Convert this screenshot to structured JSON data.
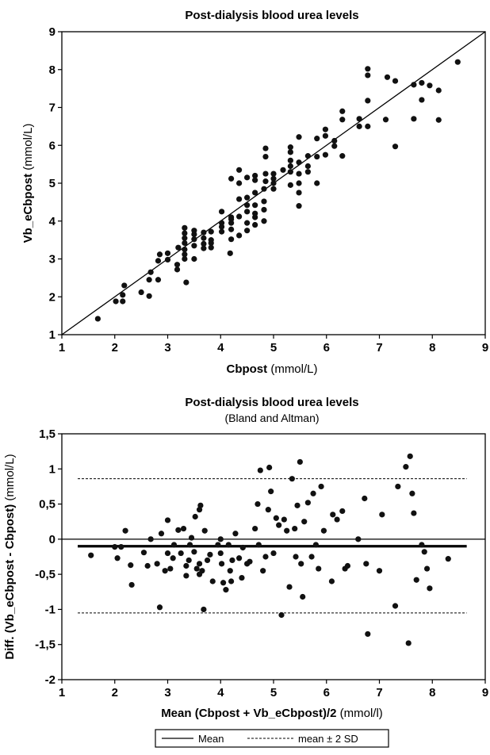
{
  "chart_data": [
    {
      "type": "scatter",
      "title": "Post-dialysis blood urea levels",
      "xlabel_bold": "Cbpost",
      "xlabel_rest": " (mmol/L)",
      "ylabel_bold": "Vb_eCbpost",
      "ylabel_rest": " (mmol/L)",
      "xlim": [
        1,
        9
      ],
      "ylim": [
        1,
        9
      ],
      "xticks": [
        1,
        2,
        3,
        4,
        5,
        6,
        7,
        8,
        9
      ],
      "yticks": [
        1,
        2,
        3,
        4,
        5,
        6,
        7,
        8,
        9
      ],
      "xtick_labels": [
        "1",
        "2",
        "3",
        "4",
        "5",
        "6",
        "7",
        "8",
        "9"
      ],
      "ytick_labels": [
        "1",
        "2",
        "3",
        "4",
        "5",
        "6",
        "7",
        "8",
        "9"
      ],
      "identity_line": true,
      "points": [
        [
          1.68,
          1.42
        ],
        [
          2.02,
          1.88
        ],
        [
          2.15,
          1.88
        ],
        [
          2.15,
          2.05
        ],
        [
          2.18,
          2.3
        ],
        [
          2.5,
          2.12
        ],
        [
          2.65,
          2.02
        ],
        [
          2.65,
          2.45
        ],
        [
          2.68,
          2.65
        ],
        [
          2.82,
          2.45
        ],
        [
          2.82,
          2.95
        ],
        [
          2.85,
          3.12
        ],
        [
          3.0,
          2.98
        ],
        [
          3.0,
          3.15
        ],
        [
          3.18,
          2.72
        ],
        [
          3.18,
          2.85
        ],
        [
          3.2,
          3.3
        ],
        [
          3.32,
          3.0
        ],
        [
          3.32,
          3.12
        ],
        [
          3.32,
          3.25
        ],
        [
          3.32,
          3.42
        ],
        [
          3.32,
          3.55
        ],
        [
          3.32,
          3.68
        ],
        [
          3.32,
          3.82
        ],
        [
          3.35,
          2.38
        ],
        [
          3.5,
          3.0
        ],
        [
          3.5,
          3.35
        ],
        [
          3.5,
          3.52
        ],
        [
          3.5,
          3.65
        ],
        [
          3.5,
          3.75
        ],
        [
          3.68,
          3.28
        ],
        [
          3.68,
          3.4
        ],
        [
          3.68,
          3.55
        ],
        [
          3.68,
          3.7
        ],
        [
          3.82,
          3.3
        ],
        [
          3.82,
          3.42
        ],
        [
          3.82,
          3.5
        ],
        [
          3.82,
          3.72
        ],
        [
          4.02,
          3.72
        ],
        [
          4.02,
          3.85
        ],
        [
          4.02,
          3.95
        ],
        [
          4.02,
          4.25
        ],
        [
          4.18,
          3.15
        ],
        [
          4.2,
          3.52
        ],
        [
          4.2,
          3.78
        ],
        [
          4.2,
          3.95
        ],
        [
          4.2,
          4.05
        ],
        [
          4.2,
          4.1
        ],
        [
          4.2,
          5.12
        ],
        [
          4.35,
          3.62
        ],
        [
          4.35,
          4.12
        ],
        [
          4.35,
          4.58
        ],
        [
          4.35,
          5.0
        ],
        [
          4.35,
          5.35
        ],
        [
          4.5,
          3.75
        ],
        [
          4.5,
          3.95
        ],
        [
          4.5,
          4.25
        ],
        [
          4.5,
          4.42
        ],
        [
          4.5,
          4.62
        ],
        [
          4.5,
          5.15
        ],
        [
          4.65,
          3.9
        ],
        [
          4.65,
          4.1
        ],
        [
          4.65,
          4.2
        ],
        [
          4.65,
          4.42
        ],
        [
          4.65,
          4.75
        ],
        [
          4.65,
          5.08
        ],
        [
          4.65,
          5.2
        ],
        [
          4.82,
          4.0
        ],
        [
          4.82,
          4.3
        ],
        [
          4.82,
          4.52
        ],
        [
          4.82,
          4.85
        ],
        [
          4.85,
          5.05
        ],
        [
          4.85,
          5.25
        ],
        [
          4.85,
          5.7
        ],
        [
          4.85,
          5.92
        ],
        [
          5.0,
          4.85
        ],
        [
          5.0,
          5.0
        ],
        [
          5.0,
          5.12
        ],
        [
          5.0,
          5.25
        ],
        [
          5.18,
          5.35
        ],
        [
          5.32,
          4.95
        ],
        [
          5.32,
          5.3
        ],
        [
          5.32,
          5.45
        ],
        [
          5.32,
          5.6
        ],
        [
          5.32,
          5.82
        ],
        [
          5.32,
          5.95
        ],
        [
          5.48,
          4.4
        ],
        [
          5.48,
          4.75
        ],
        [
          5.48,
          5.0
        ],
        [
          5.48,
          5.25
        ],
        [
          5.48,
          5.55
        ],
        [
          5.48,
          6.22
        ],
        [
          5.65,
          5.3
        ],
        [
          5.65,
          5.45
        ],
        [
          5.65,
          5.72
        ],
        [
          5.82,
          5.0
        ],
        [
          5.82,
          5.7
        ],
        [
          5.82,
          6.18
        ],
        [
          5.98,
          5.75
        ],
        [
          5.98,
          6.25
        ],
        [
          5.98,
          6.42
        ],
        [
          6.15,
          5.98
        ],
        [
          6.15,
          6.12
        ],
        [
          6.3,
          5.72
        ],
        [
          6.3,
          6.68
        ],
        [
          6.3,
          6.9
        ],
        [
          6.62,
          6.5
        ],
        [
          6.62,
          6.7
        ],
        [
          6.78,
          6.5
        ],
        [
          6.78,
          7.18
        ],
        [
          6.78,
          7.85
        ],
        [
          6.78,
          8.02
        ],
        [
          7.12,
          6.68
        ],
        [
          7.15,
          7.8
        ],
        [
          7.3,
          5.97
        ],
        [
          7.3,
          7.7
        ],
        [
          7.65,
          6.7
        ],
        [
          7.65,
          7.6
        ],
        [
          7.8,
          7.2
        ],
        [
          7.8,
          7.65
        ],
        [
          7.95,
          7.58
        ],
        [
          8.12,
          6.67
        ],
        [
          8.12,
          7.45
        ],
        [
          8.48,
          8.2
        ]
      ]
    },
    {
      "type": "scatter",
      "title": "Post-dialysis blood urea levels",
      "subtitle": "(Bland and Altman)",
      "xlabel_bold": "Mean (Cbpost + Vb_eCbpost)/2",
      "xlabel_rest": " (mmol/l)",
      "ylabel_bold": "Diff. (Vb_eCbpost - Cbpost)",
      "ylabel_rest": " (mmol/L)",
      "xlim": [
        1,
        9
      ],
      "ylim": [
        -2,
        1.5
      ],
      "xticks": [
        1,
        2,
        3,
        4,
        5,
        6,
        7,
        8,
        9
      ],
      "yticks": [
        -2,
        -1.5,
        -1,
        -0.5,
        0,
        0.5,
        1,
        1.5
      ],
      "xtick_labels": [
        "1",
        "2",
        "3",
        "4",
        "5",
        "6",
        "7",
        "8",
        "9"
      ],
      "ytick_labels": [
        "-2",
        "-1,5",
        "-1",
        "-0,5",
        "0",
        "0,5",
        "1",
        "1,5"
      ],
      "mean": -0.1,
      "upper_sd": 0.86,
      "lower_sd": -1.05,
      "legend": {
        "mean": "Mean",
        "sd": "mean ± 2 SD"
      },
      "points": [
        [
          1.55,
          -0.23
        ],
        [
          2.0,
          -0.11
        ],
        [
          2.05,
          -0.27
        ],
        [
          2.12,
          -0.11
        ],
        [
          2.2,
          0.12
        ],
        [
          2.3,
          -0.37
        ],
        [
          2.32,
          -0.65
        ],
        [
          2.55,
          -0.19
        ],
        [
          2.62,
          -0.38
        ],
        [
          2.68,
          0.0
        ],
        [
          2.8,
          -0.35
        ],
        [
          2.85,
          -0.97
        ],
        [
          2.88,
          0.08
        ],
        [
          2.95,
          -0.45
        ],
        [
          3.0,
          -0.2
        ],
        [
          3.0,
          0.27
        ],
        [
          3.05,
          -0.42
        ],
        [
          3.1,
          -0.27
        ],
        [
          3.12,
          -0.08
        ],
        [
          3.2,
          0.13
        ],
        [
          3.25,
          -0.2
        ],
        [
          3.3,
          0.15
        ],
        [
          3.35,
          -0.52
        ],
        [
          3.35,
          -0.38
        ],
        [
          3.4,
          -0.3
        ],
        [
          3.42,
          -0.08
        ],
        [
          3.45,
          0.02
        ],
        [
          3.5,
          -0.18
        ],
        [
          3.52,
          0.32
        ],
        [
          3.55,
          -0.42
        ],
        [
          3.6,
          -0.5
        ],
        [
          3.6,
          -0.35
        ],
        [
          3.6,
          0.42
        ],
        [
          3.62,
          0.48
        ],
        [
          3.65,
          -0.45
        ],
        [
          3.68,
          -1.0
        ],
        [
          3.7,
          0.12
        ],
        [
          3.75,
          -0.3
        ],
        [
          3.8,
          -0.22
        ],
        [
          3.85,
          -0.6
        ],
        [
          3.95,
          -0.08
        ],
        [
          4.0,
          -0.2
        ],
        [
          4.0,
          0.0
        ],
        [
          4.02,
          -0.35
        ],
        [
          4.05,
          -0.62
        ],
        [
          4.1,
          -0.72
        ],
        [
          4.15,
          -0.08
        ],
        [
          4.18,
          -0.45
        ],
        [
          4.2,
          -0.6
        ],
        [
          4.22,
          -0.3
        ],
        [
          4.28,
          0.08
        ],
        [
          4.35,
          -0.27
        ],
        [
          4.4,
          -0.55
        ],
        [
          4.42,
          -0.12
        ],
        [
          4.5,
          -0.35
        ],
        [
          4.55,
          -0.32
        ],
        [
          4.65,
          0.15
        ],
        [
          4.7,
          0.5
        ],
        [
          4.72,
          -0.08
        ],
        [
          4.75,
          0.98
        ],
        [
          4.8,
          -0.45
        ],
        [
          4.85,
          -0.25
        ],
        [
          4.9,
          0.42
        ],
        [
          4.92,
          1.02
        ],
        [
          4.95,
          0.68
        ],
        [
          5.0,
          -0.2
        ],
        [
          5.05,
          0.3
        ],
        [
          5.1,
          0.2
        ],
        [
          5.15,
          -1.08
        ],
        [
          5.2,
          0.28
        ],
        [
          5.25,
          0.12
        ],
        [
          5.3,
          -0.68
        ],
        [
          5.35,
          0.86
        ],
        [
          5.4,
          0.15
        ],
        [
          5.42,
          -0.25
        ],
        [
          5.45,
          0.48
        ],
        [
          5.5,
          1.1
        ],
        [
          5.52,
          -0.35
        ],
        [
          5.55,
          -0.82
        ],
        [
          5.58,
          0.25
        ],
        [
          5.65,
          0.52
        ],
        [
          5.72,
          -0.25
        ],
        [
          5.75,
          0.65
        ],
        [
          5.8,
          -0.08
        ],
        [
          5.85,
          -0.42
        ],
        [
          5.9,
          0.75
        ],
        [
          5.95,
          0.12
        ],
        [
          6.1,
          -0.6
        ],
        [
          6.12,
          0.35
        ],
        [
          6.2,
          0.28
        ],
        [
          6.3,
          0.4
        ],
        [
          6.35,
          -0.42
        ],
        [
          6.4,
          -0.38
        ],
        [
          6.6,
          0.0
        ],
        [
          6.72,
          0.58
        ],
        [
          6.75,
          -0.35
        ],
        [
          6.78,
          -1.35
        ],
        [
          7.0,
          -0.45
        ],
        [
          7.05,
          0.35
        ],
        [
          7.3,
          -0.95
        ],
        [
          7.35,
          0.75
        ],
        [
          7.5,
          1.03
        ],
        [
          7.55,
          -1.48
        ],
        [
          7.58,
          1.18
        ],
        [
          7.62,
          0.65
        ],
        [
          7.65,
          0.37
        ],
        [
          7.7,
          -0.58
        ],
        [
          7.8,
          -0.08
        ],
        [
          7.85,
          -0.18
        ],
        [
          7.9,
          -0.42
        ],
        [
          7.95,
          -0.7
        ],
        [
          8.3,
          -0.28
        ]
      ]
    }
  ]
}
